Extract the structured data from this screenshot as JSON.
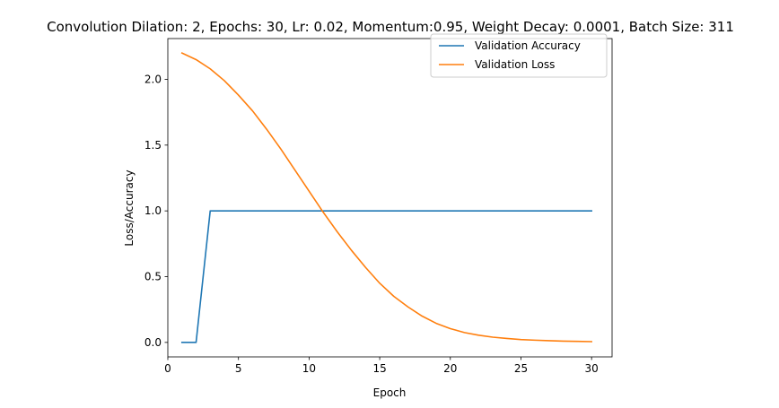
{
  "chart_data": {
    "type": "line",
    "title": "Convolution Dilation: 2, Epochs: 30, Lr: 0.02, Momentum:0.95, Weight Decay: 0.0001, Batch Size: 311",
    "xlabel": "Epoch",
    "ylabel": "Loss/Accuracy",
    "xlim": [
      0,
      31.45
    ],
    "ylim": [
      -0.11,
      2.31
    ],
    "xticks": [
      0,
      5,
      10,
      15,
      20,
      25,
      30
    ],
    "yticks": [
      0.0,
      0.5,
      1.0,
      1.5,
      2.0
    ],
    "ytick_labels": [
      "0.0",
      "0.5",
      "1.0",
      "1.5",
      "2.0"
    ],
    "grid": false,
    "legend_position": "top-right",
    "x": [
      1,
      2,
      3,
      4,
      5,
      6,
      7,
      8,
      9,
      10,
      11,
      12,
      13,
      14,
      15,
      16,
      17,
      18,
      19,
      20,
      21,
      22,
      23,
      24,
      25,
      26,
      27,
      28,
      29,
      30
    ],
    "series": [
      {
        "name": "Validation Accuracy",
        "color": "#1f77b4",
        "values": [
          0.0,
          0.0,
          1.0,
          1.0,
          1.0,
          1.0,
          1.0,
          1.0,
          1.0,
          1.0,
          1.0,
          1.0,
          1.0,
          1.0,
          1.0,
          1.0,
          1.0,
          1.0,
          1.0,
          1.0,
          1.0,
          1.0,
          1.0,
          1.0,
          1.0,
          1.0,
          1.0,
          1.0,
          1.0,
          1.0
        ]
      },
      {
        "name": "Validation Loss",
        "color": "#ff7f0e",
        "values": [
          2.2,
          2.15,
          2.08,
          1.99,
          1.88,
          1.76,
          1.62,
          1.47,
          1.31,
          1.15,
          0.99,
          0.84,
          0.7,
          0.57,
          0.45,
          0.35,
          0.27,
          0.2,
          0.145,
          0.105,
          0.075,
          0.055,
          0.04,
          0.03,
          0.022,
          0.017,
          0.013,
          0.01,
          0.008,
          0.006
        ]
      }
    ]
  }
}
